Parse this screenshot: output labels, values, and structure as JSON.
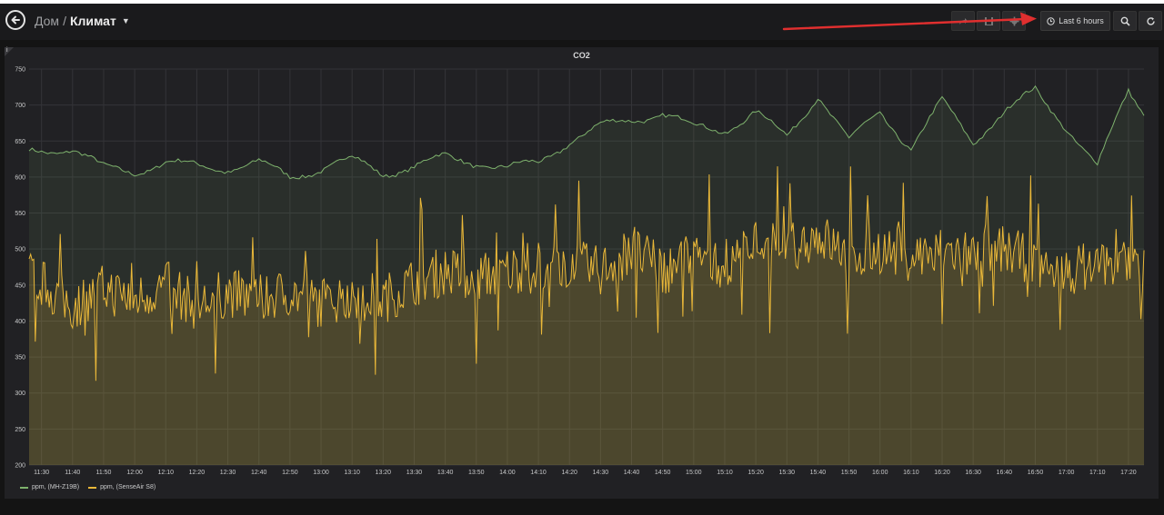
{
  "navbar": {
    "breadcrumb_parent": "Дом",
    "breadcrumb_separator": "/",
    "breadcrumb_current": "Климат",
    "time_range_label": "Last 6 hours",
    "icons": [
      "back-arrow-icon",
      "share-icon",
      "save-icon",
      "settings-icon",
      "clock-icon",
      "zoom-out-icon",
      "refresh-icon"
    ]
  },
  "panel": {
    "title": "CO2",
    "info_glyph": "i"
  },
  "colors": {
    "series_green": "#7eb26d",
    "series_yellow": "#eab839",
    "annotation_arrow": "#e02f2f"
  },
  "chart_data": {
    "type": "area",
    "title": "CO2",
    "ylim": [
      200,
      750
    ],
    "y_ticks": [
      200,
      250,
      300,
      350,
      400,
      450,
      500,
      550,
      600,
      650,
      700,
      750
    ],
    "x_ticks": [
      "11:30",
      "11:40",
      "11:50",
      "12:00",
      "12:10",
      "12:20",
      "12:30",
      "12:40",
      "12:50",
      "13:00",
      "13:10",
      "13:20",
      "13:30",
      "13:40",
      "13:50",
      "14:00",
      "14:10",
      "14:20",
      "14:30",
      "14:40",
      "14:50",
      "15:00",
      "15:10",
      "15:20",
      "15:30",
      "15:40",
      "15:50",
      "16:00",
      "16:10",
      "16:20",
      "16:30",
      "16:40",
      "16:50",
      "17:00",
      "17:10",
      "17:20"
    ],
    "x_range": [
      "11:26",
      "17:25"
    ],
    "grid": true,
    "legend_position": "bottom-left",
    "series": [
      {
        "name": "ppm, (MH-Z19B)",
        "color": "#7eb26d",
        "x": [
          "11:26",
          "11:40",
          "11:50",
          "12:00",
          "12:10",
          "12:20",
          "12:30",
          "12:40",
          "12:50",
          "13:00",
          "13:10",
          "13:20",
          "13:30",
          "13:40",
          "13:50",
          "14:00",
          "14:10",
          "14:20",
          "14:30",
          "14:40",
          "14:50",
          "15:00",
          "15:10",
          "15:20",
          "15:30",
          "15:40",
          "15:50",
          "16:00",
          "16:10",
          "16:20",
          "16:30",
          "16:40",
          "16:50",
          "17:00",
          "17:10",
          "17:20",
          "17:25"
        ],
        "values": [
          635,
          640,
          612,
          608,
          620,
          615,
          612,
          620,
          600,
          612,
          625,
          605,
          615,
          628,
          620,
          612,
          620,
          650,
          670,
          680,
          688,
          670,
          665,
          690,
          655,
          715,
          650,
          690,
          640,
          705,
          650,
          690,
          720,
          670,
          615,
          720,
          690
        ]
      },
      {
        "name": "ppm, (SenseAir S8)",
        "color": "#eab839",
        "x": [
          "11:26",
          "11:40",
          "11:50",
          "12:00",
          "12:10",
          "12:20",
          "12:30",
          "12:40",
          "12:50",
          "13:00",
          "13:10",
          "13:20",
          "13:30",
          "13:40",
          "13:50",
          "14:00",
          "14:10",
          "14:20",
          "14:30",
          "14:40",
          "14:50",
          "15:00",
          "15:10",
          "15:20",
          "15:30",
          "15:40",
          "15:50",
          "16:00",
          "16:10",
          "16:20",
          "16:30",
          "16:40",
          "16:50",
          "17:00",
          "17:10",
          "17:20",
          "17:25"
        ],
        "values": [
          465,
          420,
          445,
          430,
          450,
          420,
          440,
          430,
          440,
          425,
          440,
          430,
          455,
          470,
          460,
          470,
          480,
          480,
          470,
          500,
          470,
          490,
          480,
          510,
          500,
          520,
          490,
          500,
          490,
          500,
          490,
          500,
          480,
          470,
          480,
          490,
          470
        ]
      }
    ]
  }
}
